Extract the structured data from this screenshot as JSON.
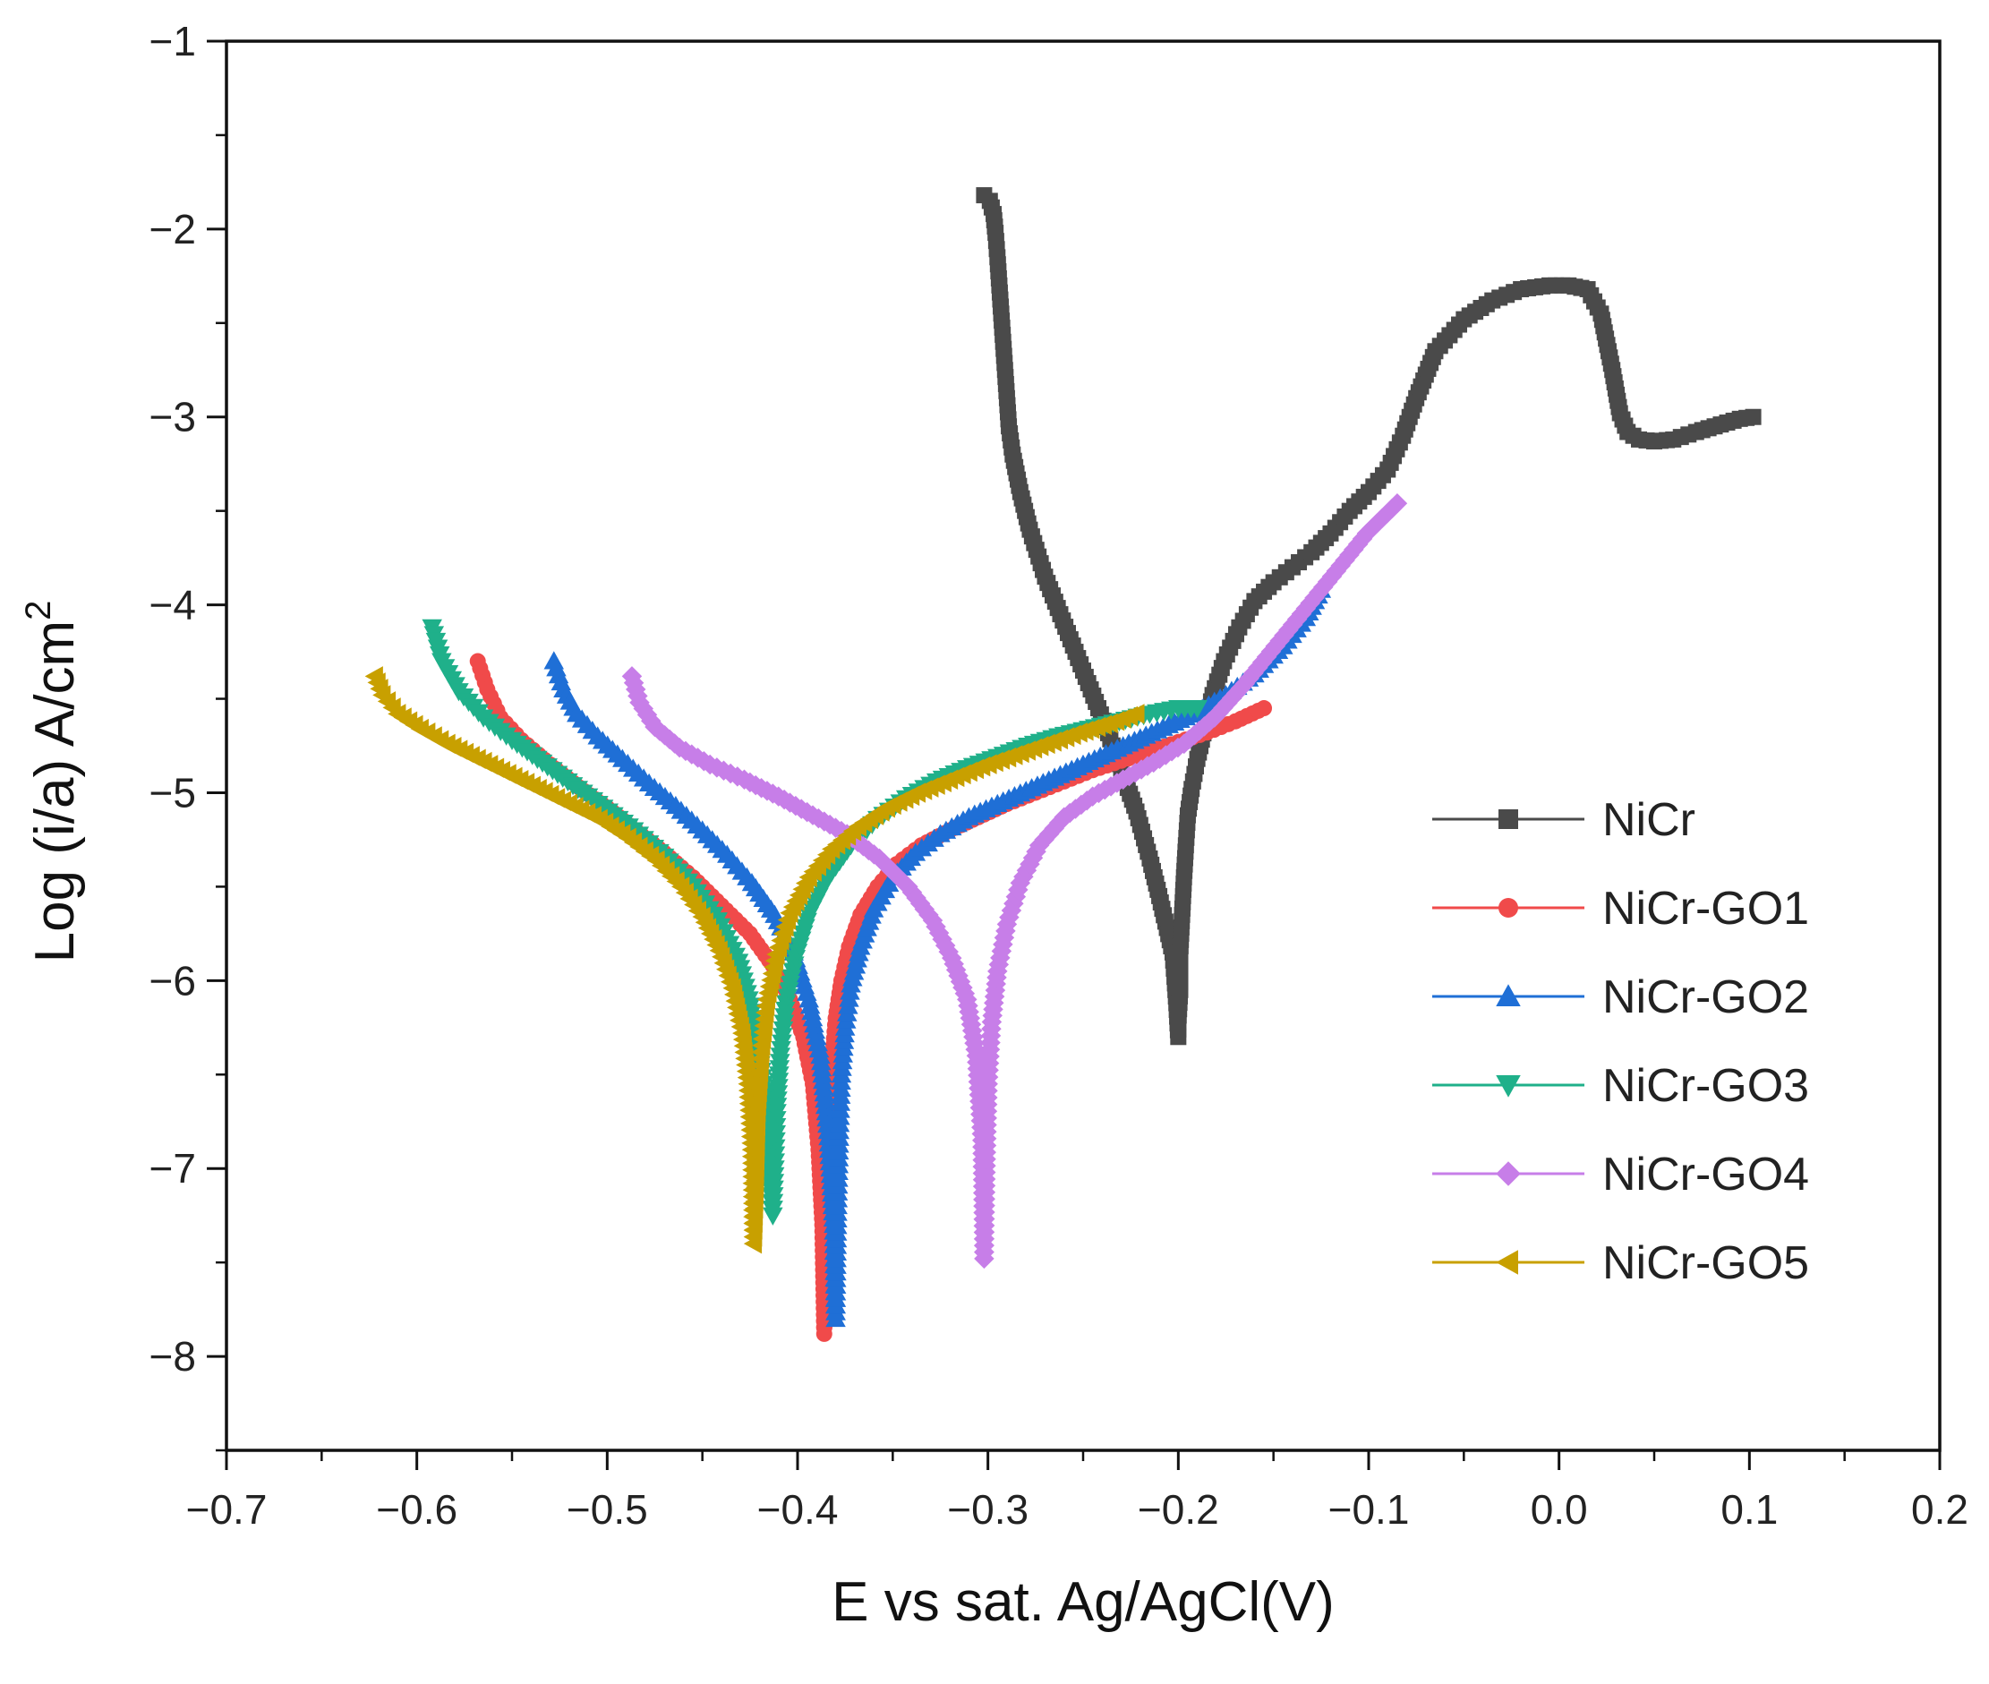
{
  "chart_data": {
    "type": "line",
    "title": "",
    "xlabel": "E vs sat. Ag/AgCl(V)",
    "ylabel": "Log (i/a) A/cm",
    "ylabel_superscript": "2",
    "xlim": [
      -0.7,
      0.2
    ],
    "ylim": [
      -8.5,
      -1
    ],
    "xticks": [
      -0.7,
      -0.6,
      -0.5,
      -0.4,
      -0.3,
      -0.2,
      -0.1,
      0.0,
      0.1,
      0.2
    ],
    "xtick_labels": [
      "−0.7",
      "−0.6",
      "−0.5",
      "−0.4",
      "−0.3",
      "−0.2",
      "−0.1",
      "0.0",
      "0.1",
      "0.2"
    ],
    "yticks": [
      -1,
      -2,
      -3,
      -4,
      -5,
      -6,
      -7,
      -8
    ],
    "ytick_labels": [
      "−1",
      "−2",
      "−3",
      "−4",
      "−5",
      "−6",
      "−7",
      "−8"
    ],
    "legend_position": "right",
    "series": [
      {
        "name": "NiCr",
        "color": "#4a4a4a",
        "marker": "square",
        "x": [
          -0.302,
          -0.299,
          -0.297,
          -0.296,
          -0.295,
          -0.294,
          -0.293,
          -0.292,
          -0.291,
          -0.29,
          -0.289,
          -0.287,
          -0.283,
          -0.278,
          -0.27,
          -0.262,
          -0.254,
          -0.246,
          -0.238,
          -0.23,
          -0.222,
          -0.215,
          -0.21,
          -0.206,
          -0.203,
          -0.202,
          -0.201,
          -0.2,
          -0.2,
          -0.199,
          -0.199,
          -0.198,
          -0.197,
          -0.196,
          -0.195,
          -0.193,
          -0.19,
          -0.186,
          -0.182,
          -0.176,
          -0.168,
          -0.16,
          -0.15,
          -0.14,
          -0.13,
          -0.12,
          -0.11,
          -0.1,
          -0.09,
          -0.082,
          -0.075,
          -0.065,
          -0.05,
          -0.035,
          -0.02,
          -0.005,
          0.005,
          0.015,
          0.022,
          0.028,
          0.032,
          0.036,
          0.042,
          0.05,
          0.06,
          0.072,
          0.085,
          0.095,
          0.102
        ],
        "y": [
          -1.82,
          -1.85,
          -1.92,
          -2.02,
          -2.15,
          -2.3,
          -2.45,
          -2.6,
          -2.75,
          -2.9,
          -3.05,
          -3.2,
          -3.4,
          -3.6,
          -3.85,
          -4.05,
          -4.25,
          -4.45,
          -4.65,
          -4.88,
          -5.1,
          -5.35,
          -5.55,
          -5.72,
          -5.85,
          -5.98,
          -6.12,
          -6.3,
          -6.22,
          -6.05,
          -5.85,
          -5.65,
          -5.45,
          -5.28,
          -5.12,
          -4.98,
          -4.82,
          -4.65,
          -4.48,
          -4.3,
          -4.12,
          -3.98,
          -3.88,
          -3.8,
          -3.72,
          -3.62,
          -3.5,
          -3.4,
          -3.28,
          -3.1,
          -2.9,
          -2.65,
          -2.48,
          -2.38,
          -2.32,
          -2.3,
          -2.3,
          -2.32,
          -2.45,
          -2.75,
          -2.98,
          -3.08,
          -3.12,
          -3.13,
          -3.12,
          -3.08,
          -3.04,
          -3.01,
          -3.0
        ]
      },
      {
        "name": "NiCr-GO1",
        "color": "#f04a4a",
        "marker": "circle",
        "x": [
          -0.568,
          -0.563,
          -0.556,
          -0.545,
          -0.53,
          -0.515,
          -0.5,
          -0.485,
          -0.47,
          -0.455,
          -0.44,
          -0.425,
          -0.413,
          -0.404,
          -0.397,
          -0.392,
          -0.389,
          -0.387,
          -0.386,
          -0.385,
          -0.384,
          -0.383,
          -0.382,
          -0.38,
          -0.377,
          -0.373,
          -0.367,
          -0.358,
          -0.348,
          -0.335,
          -0.32,
          -0.305,
          -0.29,
          -0.275,
          -0.26,
          -0.245,
          -0.23,
          -0.215,
          -0.2,
          -0.185,
          -0.17,
          -0.155
        ],
        "y": [
          -4.3,
          -4.45,
          -4.6,
          -4.72,
          -4.85,
          -4.97,
          -5.08,
          -5.2,
          -5.32,
          -5.45,
          -5.6,
          -5.75,
          -5.92,
          -6.1,
          -6.3,
          -6.55,
          -6.9,
          -7.3,
          -7.88,
          -7.4,
          -7.0,
          -6.7,
          -6.45,
          -6.2,
          -6.0,
          -5.82,
          -5.65,
          -5.5,
          -5.38,
          -5.28,
          -5.2,
          -5.13,
          -5.06,
          -5.0,
          -4.94,
          -4.88,
          -4.83,
          -4.78,
          -4.73,
          -4.68,
          -4.62,
          -4.55
        ]
      },
      {
        "name": "NiCr-GO2",
        "color": "#1f6fd6",
        "marker": "triangle-up",
        "x": [
          -0.528,
          -0.523,
          -0.516,
          -0.505,
          -0.492,
          -0.478,
          -0.464,
          -0.45,
          -0.437,
          -0.424,
          -0.412,
          -0.402,
          -0.394,
          -0.388,
          -0.384,
          -0.381,
          -0.38,
          -0.379,
          -0.378,
          -0.377,
          -0.375,
          -0.372,
          -0.367,
          -0.36,
          -0.35,
          -0.338,
          -0.325,
          -0.31,
          -0.295,
          -0.28,
          -0.265,
          -0.25,
          -0.235,
          -0.22,
          -0.205,
          -0.19,
          -0.175,
          -0.16,
          -0.145,
          -0.133,
          -0.125
        ],
        "y": [
          -4.3,
          -4.45,
          -4.58,
          -4.7,
          -4.82,
          -4.95,
          -5.07,
          -5.2,
          -5.33,
          -5.48,
          -5.65,
          -5.85,
          -6.1,
          -6.4,
          -6.8,
          -7.3,
          -7.8,
          -7.2,
          -6.8,
          -6.5,
          -6.25,
          -6.02,
          -5.82,
          -5.62,
          -5.45,
          -5.32,
          -5.22,
          -5.13,
          -5.06,
          -4.99,
          -4.92,
          -4.85,
          -4.78,
          -4.71,
          -4.64,
          -4.57,
          -4.48,
          -4.37,
          -4.22,
          -4.07,
          -3.92
        ]
      },
      {
        "name": "NiCr-GO3",
        "color": "#1fb08a",
        "marker": "triangle-down",
        "x": [
          -0.592,
          -0.587,
          -0.578,
          -0.565,
          -0.55,
          -0.534,
          -0.518,
          -0.502,
          -0.486,
          -0.47,
          -0.455,
          -0.442,
          -0.431,
          -0.423,
          -0.418,
          -0.415,
          -0.413,
          -0.412,
          -0.411,
          -0.409,
          -0.406,
          -0.401,
          -0.394,
          -0.384,
          -0.372,
          -0.358,
          -0.343,
          -0.327,
          -0.311,
          -0.295,
          -0.279,
          -0.263,
          -0.247,
          -0.231,
          -0.215,
          -0.2,
          -0.19
        ],
        "y": [
          -4.12,
          -4.3,
          -4.46,
          -4.6,
          -4.72,
          -4.84,
          -4.96,
          -5.08,
          -5.2,
          -5.34,
          -5.5,
          -5.68,
          -5.9,
          -6.2,
          -6.55,
          -6.9,
          -7.25,
          -7.0,
          -6.7,
          -6.4,
          -6.12,
          -5.88,
          -5.65,
          -5.45,
          -5.28,
          -5.14,
          -5.03,
          -4.94,
          -4.87,
          -4.81,
          -4.75,
          -4.7,
          -4.66,
          -4.62,
          -4.58,
          -4.55,
          -4.55
        ]
      },
      {
        "name": "NiCr-GO4",
        "color": "#c77ee8",
        "marker": "diamond",
        "x": [
          -0.487,
          -0.483,
          -0.475,
          -0.462,
          -0.446,
          -0.428,
          -0.41,
          -0.392,
          -0.374,
          -0.357,
          -0.342,
          -0.329,
          -0.319,
          -0.311,
          -0.306,
          -0.303,
          -0.302,
          -0.301,
          -0.3,
          -0.298,
          -0.295,
          -0.29,
          -0.283,
          -0.273,
          -0.26,
          -0.245,
          -0.229,
          -0.213,
          -0.197,
          -0.181,
          -0.165,
          -0.149,
          -0.133,
          -0.117,
          -0.101,
          -0.085
        ],
        "y": [
          -4.38,
          -4.52,
          -4.65,
          -4.76,
          -4.85,
          -4.93,
          -5.02,
          -5.12,
          -5.22,
          -5.35,
          -5.5,
          -5.68,
          -5.88,
          -6.1,
          -6.4,
          -6.85,
          -7.48,
          -6.95,
          -6.55,
          -6.22,
          -5.95,
          -5.7,
          -5.48,
          -5.28,
          -5.13,
          -5.02,
          -4.93,
          -4.84,
          -4.74,
          -4.6,
          -4.42,
          -4.22,
          -4.02,
          -3.82,
          -3.62,
          -3.46
        ]
      },
      {
        "name": "NiCr-GO5",
        "color": "#c8a000",
        "marker": "triangle-left",
        "x": [
          -0.622,
          -0.618,
          -0.61,
          -0.598,
          -0.584,
          -0.568,
          -0.552,
          -0.536,
          -0.52,
          -0.504,
          -0.489,
          -0.474,
          -0.461,
          -0.45,
          -0.441,
          -0.434,
          -0.429,
          -0.426,
          -0.424,
          -0.423,
          -0.422,
          -0.421,
          -0.419,
          -0.416,
          -0.411,
          -0.404,
          -0.394,
          -0.382,
          -0.368,
          -0.353,
          -0.337,
          -0.32,
          -0.303,
          -0.286,
          -0.269,
          -0.252,
          -0.236,
          -0.222
        ],
        "y": [
          -4.38,
          -4.48,
          -4.58,
          -4.66,
          -4.74,
          -4.82,
          -4.9,
          -4.98,
          -5.06,
          -5.14,
          -5.24,
          -5.36,
          -5.5,
          -5.66,
          -5.84,
          -6.04,
          -6.28,
          -6.55,
          -6.9,
          -7.4,
          -7.1,
          -6.7,
          -6.38,
          -6.1,
          -5.86,
          -5.64,
          -5.45,
          -5.3,
          -5.18,
          -5.08,
          -5.0,
          -4.93,
          -4.86,
          -4.8,
          -4.74,
          -4.68,
          -4.63,
          -4.58
        ]
      }
    ]
  }
}
